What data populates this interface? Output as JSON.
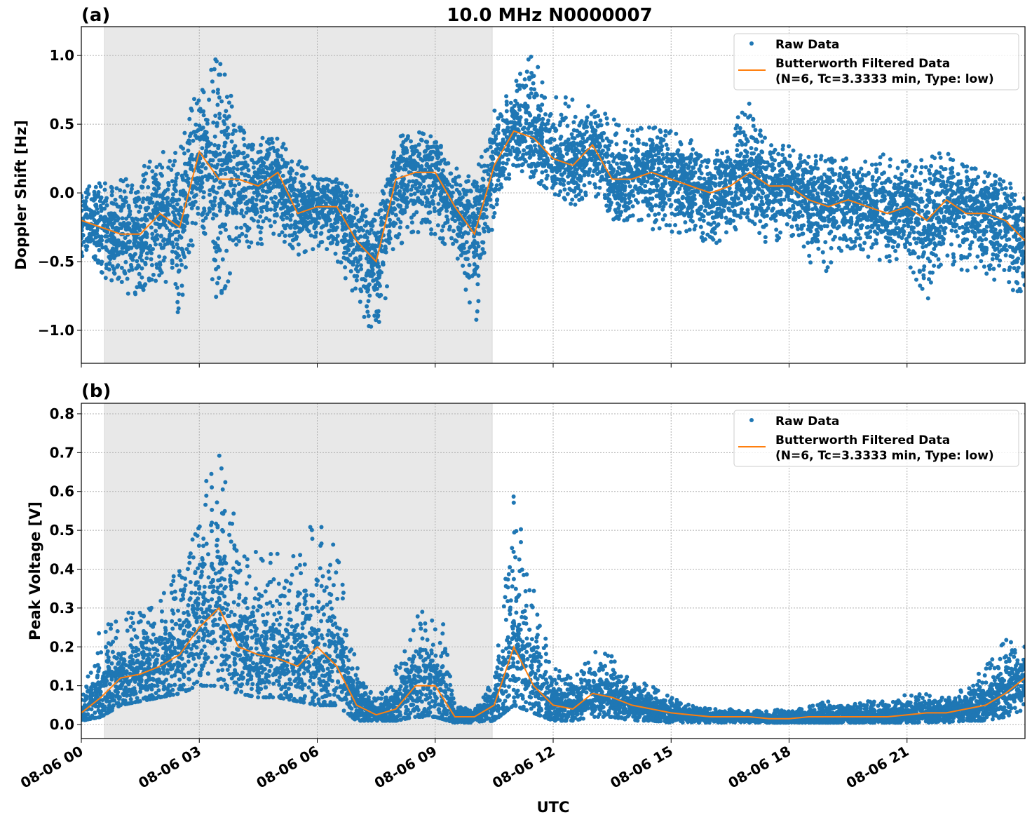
{
  "title": "10.0 MHz N0000007",
  "xlabel": "UTC",
  "colors": {
    "raw": "#1f77b4",
    "filtered": "#ff7f0e",
    "shade": "#e8e8e8"
  },
  "legend": {
    "raw": "Raw Data",
    "filtered_line1": "Butterworth Filtered Data",
    "filtered_line2": "(N=6, Tc=3.3333 min, Type: low)",
    "placement": "upper-right"
  },
  "chart_data": [
    {
      "type": "scatter+line",
      "panel_label": "(a)",
      "ylabel": "Doppler Shift [Hz]",
      "xlim_hours_utc": [
        0,
        24
      ],
      "ylim": [
        -1.24,
        1.21
      ],
      "x_ticks": [
        "08-06 00",
        "08-06 03",
        "08-06 06",
        "08-06 09",
        "08-06 12",
        "08-06 15",
        "08-06 18",
        "08-06 21"
      ],
      "y_ticks": [
        "1.0",
        "0.5",
        "0.0",
        "−0.5",
        "−1.0"
      ],
      "y_tick_values": [
        1.0,
        0.5,
        0.0,
        -0.5,
        -1.0
      ],
      "grid": true,
      "shaded_span_hours_utc": [
        0.59,
        10.45
      ],
      "x_hours": [
        0,
        0.5,
        1,
        1.5,
        2,
        2.5,
        3,
        3.5,
        4,
        4.5,
        5,
        5.5,
        6,
        6.5,
        7,
        7.5,
        8,
        8.5,
        9,
        9.5,
        10,
        10.5,
        11,
        11.5,
        12,
        12.5,
        13,
        13.5,
        14,
        14.5,
        15,
        15.5,
        16,
        16.5,
        17,
        17.5,
        18,
        18.5,
        19,
        19.5,
        20,
        20.5,
        21,
        21.5,
        22,
        22.5,
        23,
        23.5,
        24
      ],
      "filtered": [
        -0.2,
        -0.25,
        -0.3,
        -0.3,
        -0.15,
        -0.25,
        0.3,
        0.1,
        0.1,
        0.05,
        0.15,
        -0.15,
        -0.1,
        -0.1,
        -0.35,
        -0.5,
        0.1,
        0.15,
        0.15,
        -0.1,
        -0.3,
        0.2,
        0.45,
        0.4,
        0.25,
        0.2,
        0.35,
        0.1,
        0.1,
        0.15,
        0.1,
        0.05,
        0.0,
        0.05,
        0.15,
        0.05,
        0.05,
        -0.05,
        -0.1,
        -0.05,
        -0.1,
        -0.15,
        -0.1,
        -0.2,
        -0.05,
        -0.15,
        -0.15,
        -0.2,
        -0.35
      ],
      "raw_min": [
        -0.5,
        -0.6,
        -0.7,
        -0.8,
        -0.6,
        -0.9,
        -0.2,
        -0.9,
        -0.4,
        -0.4,
        -0.3,
        -0.5,
        -0.4,
        -0.5,
        -0.8,
        -1.1,
        -0.4,
        -0.3,
        -0.3,
        -0.5,
        -1.0,
        -0.2,
        0.2,
        0.1,
        0.0,
        -0.1,
        0.0,
        -0.2,
        -0.2,
        -0.3,
        -0.3,
        -0.3,
        -0.4,
        -0.3,
        -0.2,
        -0.4,
        -0.3,
        -0.5,
        -0.6,
        -0.4,
        -0.5,
        -0.5,
        -0.5,
        -0.8,
        -0.5,
        -0.6,
        -0.6,
        -0.7,
        -0.75
      ],
      "raw_max": [
        0.05,
        0.1,
        0.1,
        0.2,
        0.3,
        0.3,
        0.9,
        1.1,
        0.5,
        0.4,
        0.4,
        0.25,
        0.1,
        0.1,
        0.0,
        -0.1,
        0.4,
        0.45,
        0.4,
        0.2,
        0.1,
        0.6,
        0.8,
        1.05,
        0.75,
        0.7,
        0.65,
        0.55,
        0.45,
        0.5,
        0.45,
        0.4,
        0.35,
        0.45,
        0.7,
        0.35,
        0.35,
        0.3,
        0.25,
        0.25,
        0.25,
        0.3,
        0.25,
        0.3,
        0.3,
        0.2,
        0.15,
        0.1,
        0.0
      ]
    },
    {
      "type": "scatter+line",
      "panel_label": "(b)",
      "ylabel": "Peak Voltage [V]",
      "xlim_hours_utc": [
        0,
        24
      ],
      "ylim": [
        -0.036,
        0.827
      ],
      "x_ticks": [
        "08-06 00",
        "08-06 03",
        "08-06 06",
        "08-06 09",
        "08-06 12",
        "08-06 15",
        "08-06 18",
        "08-06 21"
      ],
      "y_ticks": [
        "0.0",
        "0.1",
        "0.2",
        "0.3",
        "0.4",
        "0.5",
        "0.6",
        "0.7",
        "0.8"
      ],
      "y_tick_values": [
        0,
        0.1,
        0.2,
        0.3,
        0.4,
        0.5,
        0.6,
        0.7,
        0.8
      ],
      "grid": true,
      "shaded_span_hours_utc": [
        0.59,
        10.45
      ],
      "x_hours": [
        0,
        0.5,
        1,
        1.5,
        2,
        2.5,
        3,
        3.5,
        4,
        4.5,
        5,
        5.5,
        6,
        6.5,
        7,
        7.5,
        8,
        8.5,
        9,
        9.5,
        10,
        10.5,
        11,
        11.5,
        12,
        12.5,
        13,
        13.5,
        14,
        14.5,
        15,
        15.5,
        16,
        16.5,
        17,
        17.5,
        18,
        18.5,
        19,
        19.5,
        20,
        20.5,
        21,
        21.5,
        22,
        22.5,
        23,
        23.5,
        24
      ],
      "filtered": [
        0.03,
        0.07,
        0.12,
        0.13,
        0.15,
        0.18,
        0.25,
        0.3,
        0.2,
        0.18,
        0.17,
        0.15,
        0.2,
        0.15,
        0.05,
        0.025,
        0.04,
        0.1,
        0.1,
        0.02,
        0.02,
        0.05,
        0.2,
        0.1,
        0.05,
        0.04,
        0.08,
        0.07,
        0.05,
        0.04,
        0.03,
        0.025,
        0.02,
        0.02,
        0.02,
        0.015,
        0.015,
        0.02,
        0.02,
        0.02,
        0.02,
        0.02,
        0.025,
        0.03,
        0.03,
        0.04,
        0.05,
        0.08,
        0.12
      ],
      "raw_min": [
        0.01,
        0.02,
        0.05,
        0.06,
        0.07,
        0.08,
        0.1,
        0.1,
        0.08,
        0.07,
        0.07,
        0.06,
        0.05,
        0.05,
        0.01,
        0.01,
        0.01,
        0.02,
        0.02,
        0.005,
        0.005,
        0.01,
        0.05,
        0.03,
        0.01,
        0.01,
        0.02,
        0.02,
        0.01,
        0.01,
        0.005,
        0.005,
        0.005,
        0.005,
        0.005,
        0.005,
        0.005,
        0.005,
        0.005,
        0.005,
        0.005,
        0.005,
        0.005,
        0.005,
        0.005,
        0.01,
        0.01,
        0.02,
        0.04
      ],
      "raw_max": [
        0.06,
        0.3,
        0.28,
        0.3,
        0.35,
        0.4,
        0.6,
        0.7,
        0.5,
        0.45,
        0.45,
        0.45,
        0.55,
        0.45,
        0.15,
        0.06,
        0.15,
        0.3,
        0.4,
        0.05,
        0.04,
        0.12,
        0.6,
        0.35,
        0.15,
        0.12,
        0.2,
        0.18,
        0.12,
        0.1,
        0.07,
        0.05,
        0.04,
        0.04,
        0.04,
        0.04,
        0.035,
        0.05,
        0.06,
        0.05,
        0.06,
        0.06,
        0.08,
        0.08,
        0.07,
        0.1,
        0.15,
        0.22,
        0.2
      ]
    }
  ]
}
